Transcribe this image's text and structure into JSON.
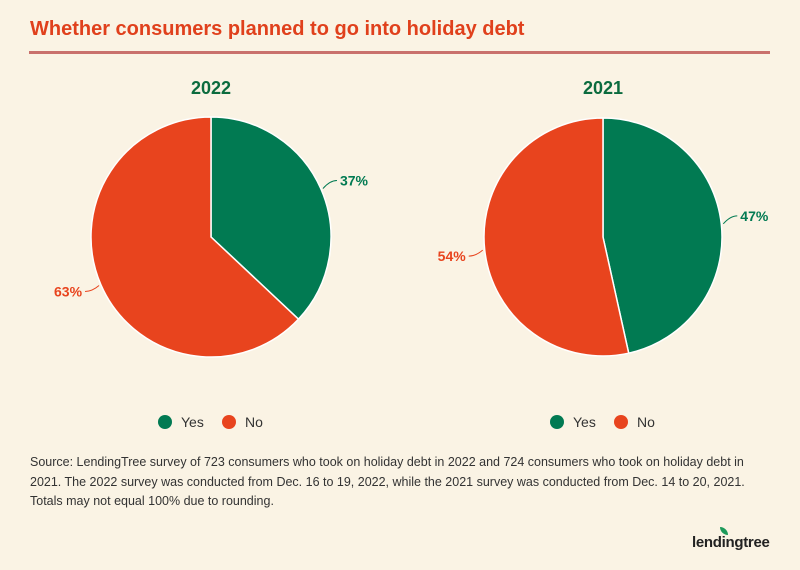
{
  "title": "Whether consumers planned to go into holiday debt",
  "colors": {
    "Yes": "#017a52",
    "No": "#e8441e",
    "title": "#e0401c"
  },
  "chart_data": [
    {
      "type": "pie",
      "title": "2022",
      "categories": [
        "Yes",
        "No"
      ],
      "values": [
        37,
        63
      ],
      "labels": [
        "37%",
        "63%"
      ],
      "legend": [
        "Yes",
        "No"
      ],
      "legend_position": "bottom"
    },
    {
      "type": "pie",
      "title": "2021",
      "categories": [
        "Yes",
        "No"
      ],
      "values": [
        47,
        54
      ],
      "labels": [
        "47%",
        "54%"
      ],
      "legend": [
        "Yes",
        "No"
      ],
      "legend_position": "bottom"
    }
  ],
  "source": "Source: LendingTree survey of 723 consumers who took on holiday debt in 2022 and 724 consumers who took on holiday debt in 2021. The 2022 survey was conducted from Dec. 16 to 19, 2022, while the 2021 survey was conducted from Dec. 14 to 20, 2021. Totals may not equal 100% due to rounding.",
  "logo": "lendingtree"
}
